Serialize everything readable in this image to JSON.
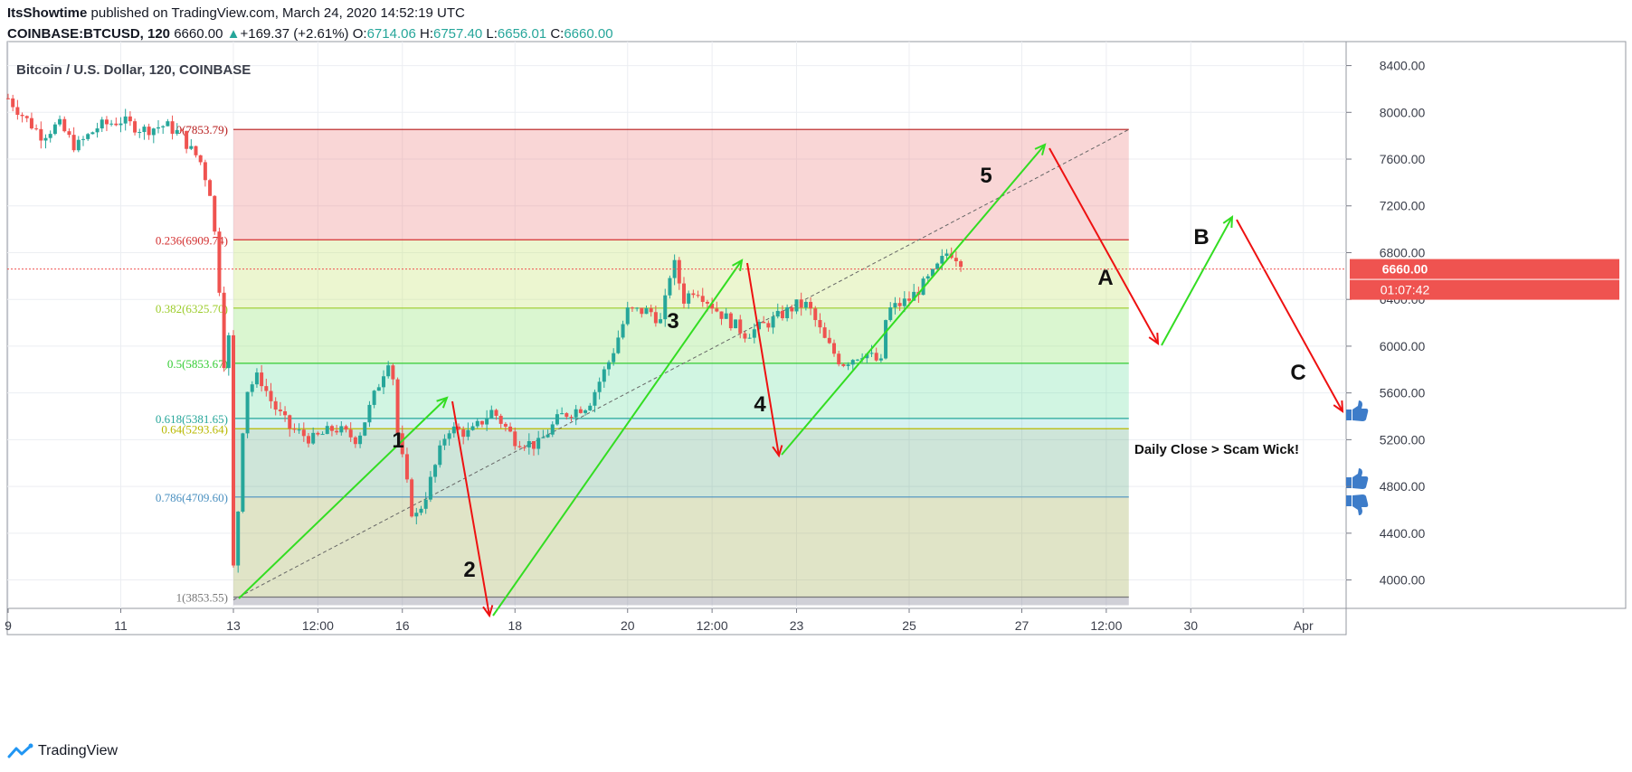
{
  "header": {
    "author": "ItsShowtime",
    "published_text": "published on TradingView.com, March 24, 2020 14:52:19 UTC",
    "symbol": "COINBASE:BTCUSD, 120",
    "last": "6660.00",
    "change": "+169.37 (+2.61%)",
    "o_label": "O:",
    "o_value": "6714.06",
    "h_label": "H:",
    "h_value": "6757.40",
    "l_label": "L:",
    "l_value": "6656.01",
    "c_label": "C:",
    "c_value": "6660.00"
  },
  "chart_data": {
    "type": "candlestick",
    "title": "Bitcoin / U.S. Dollar, 120, COINBASE",
    "x_ticks": [
      "9",
      "11",
      "13",
      "12:00",
      "16",
      "18",
      "20",
      "12:00",
      "23",
      "25",
      "27",
      "12:00",
      "30",
      "Apr"
    ],
    "y_ticks": [
      "8400.00",
      "8000.00",
      "7600.00",
      "7200.00",
      "6800.00",
      "6400.00",
      "6000.00",
      "5600.00",
      "5200.00",
      "4800.00",
      "4400.00",
      "4000.00"
    ],
    "ylim": [
      3700,
      8550
    ],
    "current_price": "6660.00",
    "countdown": "01:07:42",
    "fib_levels": [
      {
        "label": "0(7853.79)",
        "value": 7853.79
      },
      {
        "label": "0.236(6909.74)",
        "value": 6909.74
      },
      {
        "label": "0.382(6325.70)",
        "value": 6325.7
      },
      {
        "label": "0.5(5853.67)",
        "value": 5853.67
      },
      {
        "label": "0.618(5381.65)",
        "value": 5381.65
      },
      {
        "label": "0.64(5293.64)",
        "value": 5293.64
      },
      {
        "label": "0.786(4709.60)",
        "value": 4709.6
      },
      {
        "label": "1(3853.55)",
        "value": 3853.55
      }
    ],
    "wave_labels": [
      "1",
      "2",
      "3",
      "4",
      "5",
      "A",
      "B",
      "C"
    ],
    "annotation": "Daily Close > Scam Wick!",
    "colors": {
      "up": "#26a69a",
      "down": "#ef5350",
      "impulse": "#33dd22",
      "correction": "#ee1111"
    }
  },
  "footer": {
    "brand": "TradingView"
  }
}
